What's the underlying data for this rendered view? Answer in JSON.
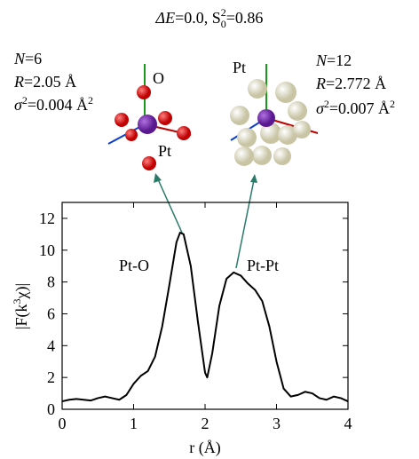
{
  "chart_data": {
    "type": "line",
    "title": [
      "ΔE",
      "=0.0, S",
      "0",
      "2",
      "=0.86"
    ],
    "annotations": {
      "left": {
        "line1": [
          "N",
          "=6"
        ],
        "line2": [
          "R",
          "=2.05 Å"
        ],
        "line3": [
          "σ",
          "2",
          "=0.004 Å",
          "2"
        ]
      },
      "right": {
        "line1": [
          "N",
          "=12"
        ],
        "line2": [
          "R",
          "=2.772 Å"
        ],
        "line3": [
          "σ",
          "2",
          "=0.007 Å",
          "2"
        ]
      },
      "atom_o": "O",
      "atom_pt_left": "Pt",
      "atom_pt_right": "Pt",
      "peak1": "Pt-O",
      "peak2": "Pt-Pt"
    },
    "xlabel": "r (Å)",
    "ylabel": [
      "|F(k",
      "3",
      "χ)|"
    ],
    "x": [
      0,
      0.1,
      0.2,
      0.3,
      0.4,
      0.5,
      0.6,
      0.7,
      0.8,
      0.9,
      1.0,
      1.1,
      1.2,
      1.3,
      1.4,
      1.5,
      1.6,
      1.65,
      1.7,
      1.8,
      1.9,
      2.0,
      2.03,
      2.1,
      2.2,
      2.3,
      2.4,
      2.5,
      2.6,
      2.7,
      2.8,
      2.9,
      3.0,
      3.1,
      3.2,
      3.3,
      3.4,
      3.5,
      3.6,
      3.7,
      3.8,
      3.9,
      4.0
    ],
    "values": [
      0.5,
      0.6,
      0.65,
      0.6,
      0.55,
      0.7,
      0.8,
      0.7,
      0.6,
      0.9,
      1.6,
      2.1,
      2.4,
      3.3,
      5.2,
      7.8,
      10.5,
      11.1,
      11.0,
      9.0,
      5.5,
      2.3,
      2.0,
      3.5,
      6.5,
      8.2,
      8.6,
      8.4,
      7.9,
      7.5,
      6.8,
      5.2,
      3.0,
      1.3,
      0.8,
      0.9,
      1.1,
      1.0,
      0.7,
      0.6,
      0.8,
      0.7,
      0.5
    ],
    "color": "#000000",
    "xlim": [
      0,
      4
    ],
    "xticks": [
      0,
      1,
      2,
      3,
      4
    ],
    "ylim": [
      0,
      13
    ],
    "yticks": [
      0,
      2,
      4,
      6,
      8,
      10,
      12
    ]
  }
}
